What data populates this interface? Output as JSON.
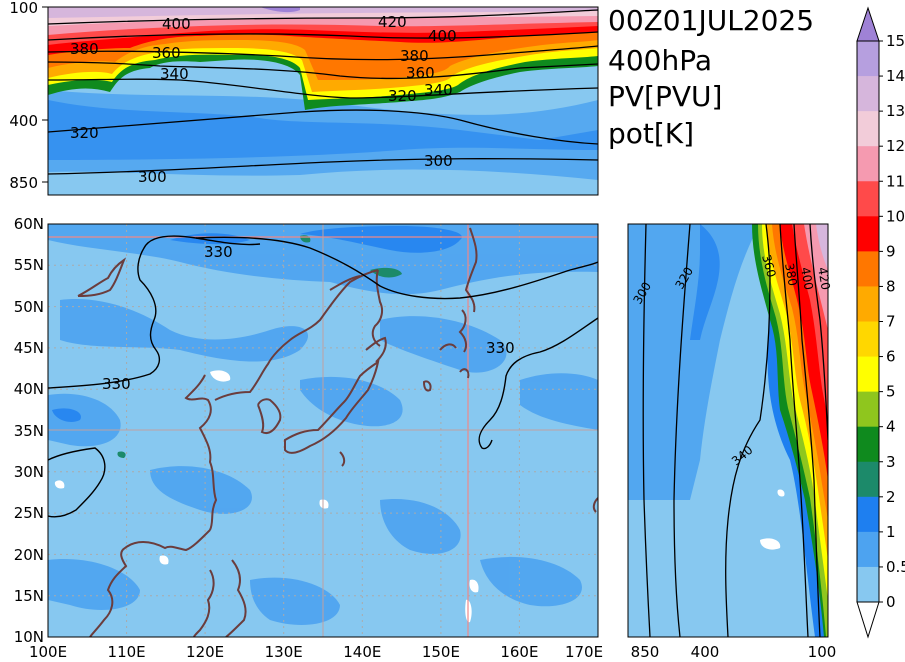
{
  "title_lines": [
    "00Z01JUL2025",
    "400hPa",
    "PV[PVU]",
    "pot[K]"
  ],
  "colorbar": {
    "ticks": [
      "15",
      "14",
      "13",
      "12",
      "11",
      "10",
      "9",
      "8",
      "7",
      "6",
      "5",
      "4",
      "3",
      "2",
      "1",
      "0.5",
      "0"
    ],
    "colors": [
      "#9f82d6",
      "#b69fdf",
      "#d6b6dc",
      "#f2ccd9",
      "#f59ab0",
      "#ff4a4a",
      "#ff0000",
      "#ff7700",
      "#ffaa00",
      "#ffd700",
      "#ffff00",
      "#8fc61e",
      "#0f8a1e",
      "#1c8a6a",
      "#1e7ff0",
      "#4da3f0",
      "#87c8f0"
    ]
  },
  "main_map": {
    "lon_ticks": [
      "100E",
      "110E",
      "120E",
      "130E",
      "140E",
      "150E",
      "160E",
      "170E"
    ],
    "lat_ticks": [
      "60N",
      "55N",
      "50N",
      "45N",
      "40N",
      "35N",
      "30N",
      "25N",
      "20N",
      "15N",
      "10N"
    ],
    "contour_labels": [
      "330",
      "330",
      "330"
    ]
  },
  "top_section": {
    "pressure_ticks": [
      "100",
      "400",
      "850"
    ],
    "contour_labels": [
      "400",
      "420",
      "400",
      "380",
      "360",
      "380",
      "340",
      "360",
      "340",
      "320",
      "320",
      "300",
      "300"
    ]
  },
  "right_section": {
    "pressure_ticks": [
      "850",
      "400",
      "100"
    ],
    "contour_labels": [
      "300",
      "320",
      "360",
      "380",
      "400",
      "420",
      "340"
    ]
  }
}
